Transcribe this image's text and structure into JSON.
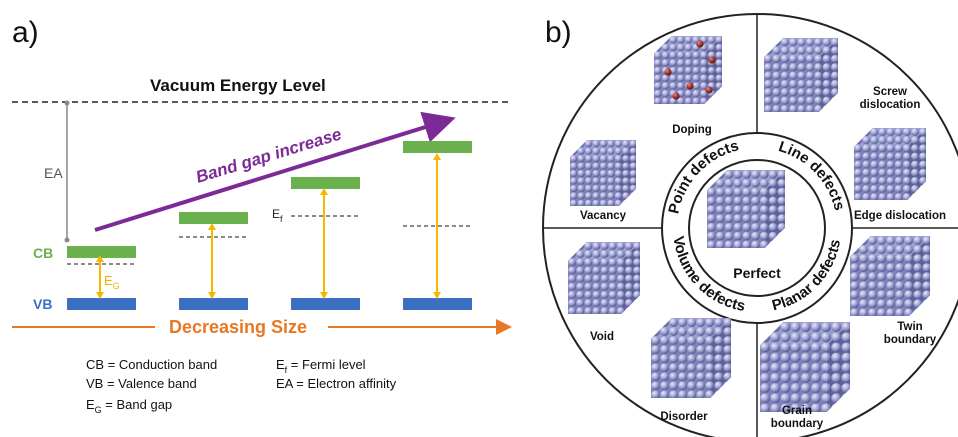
{
  "panel_a": {
    "label": "a)",
    "vacuum_level": "Vacuum Energy Level",
    "cb_label": "CB",
    "vb_label": "VB",
    "ea_label": "EA",
    "eg_label": "E",
    "eg_sub": "G",
    "ef_label": "E",
    "ef_sub": "f",
    "band_gap_increase": "Band gap increase",
    "decreasing_size": "Decreasing Size",
    "legend": {
      "cb": "CB = Conduction band",
      "vb": "VB = Valence band",
      "eg_main": "E",
      "eg_sub": "G",
      "eg_rest": " = Band gap",
      "ef_main": "E",
      "ef_sub": "f",
      "ef_rest": " = Fermi level",
      "ea": "EA = Electron affinity"
    },
    "colors": {
      "cb": "#6ab04c",
      "vb": "#3a6fc4",
      "arrow_gap": "#f5b800",
      "band_gap_arrow": "#7b2a96",
      "decreasing_size": "#e87722"
    }
  },
  "panel_b": {
    "label": "b)",
    "center": "Perfect",
    "ring": {
      "point": "Point defects",
      "line": "Line defects",
      "planar": "Planar defects",
      "volume": "Volume defects"
    },
    "cubes": {
      "doping": "Doping",
      "vacancy": "Vacancy",
      "screw_1": "Screw",
      "screw_2": "dislocation",
      "edge": "Edge dislocation",
      "twin_1": "Twin",
      "twin_2": "boundary",
      "grain_1": "Grain",
      "grain_2": "boundary",
      "disorder": "Disorder",
      "void": "Void"
    },
    "colors": {
      "sphere": "#9fa3d6",
      "dopant": "#a0312c"
    }
  }
}
